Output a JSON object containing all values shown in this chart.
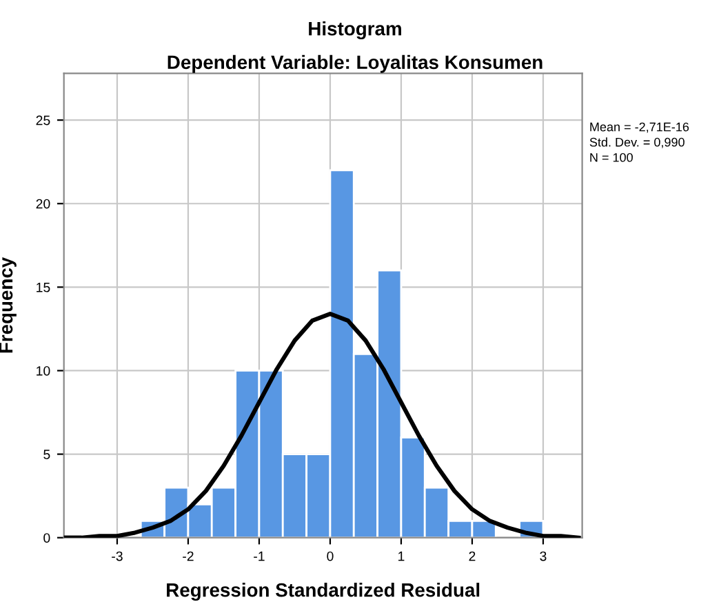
{
  "chart_data": {
    "type": "histogram",
    "title": "Histogram",
    "subtitle": "Dependent Variable: Loyalitas Konsumen",
    "xlabel": "Regression Standardized Residual",
    "ylabel": "Frequency",
    "bins": [
      -2.667,
      -2.333,
      -2.0,
      -1.667,
      -1.333,
      -1.0,
      -0.667,
      -0.333,
      0.0,
      0.333,
      0.667,
      1.0,
      1.333,
      1.667,
      2.0,
      2.333,
      2.667,
      3.0
    ],
    "values": [
      1,
      3,
      2,
      3,
      10,
      10,
      5,
      5,
      22,
      11,
      16,
      6,
      3,
      1,
      1,
      0,
      1
    ],
    "color": "#5897e3",
    "series": [
      {
        "type": "line",
        "color": "#000000",
        "x": [
          -3.75,
          -3.5,
          -3.25,
          -3.0,
          -2.75,
          -2.5,
          -2.25,
          -2.0,
          -1.75,
          -1.5,
          -1.25,
          -1.0,
          -0.75,
          -0.5,
          -0.25,
          0.0,
          0.25,
          0.5,
          0.75,
          1.0,
          1.25,
          1.5,
          1.75,
          2.0,
          2.25,
          2.5,
          2.75,
          3.0,
          3.25,
          3.5
        ],
        "values": [
          0.0,
          0.0,
          0.1,
          0.1,
          0.3,
          0.6,
          1.0,
          1.7,
          2.8,
          4.3,
          6.1,
          8.1,
          10.1,
          11.8,
          13.0,
          13.4,
          13.0,
          11.8,
          10.1,
          8.1,
          6.1,
          4.3,
          2.8,
          1.7,
          1.0,
          0.6,
          0.3,
          0.1,
          0.1,
          0.0
        ]
      }
    ],
    "xlim": [
      -3.75,
      3.55
    ],
    "ylim": [
      0,
      27.8
    ],
    "xticks": [
      -3,
      -2,
      -1,
      0,
      1,
      2,
      3
    ],
    "yticks": [
      0,
      5,
      10,
      15,
      20,
      25
    ],
    "grid": true,
    "annotations": [
      "Mean = -2,71E-16",
      "Std. Dev. = 0,990",
      "N = 100"
    ]
  }
}
